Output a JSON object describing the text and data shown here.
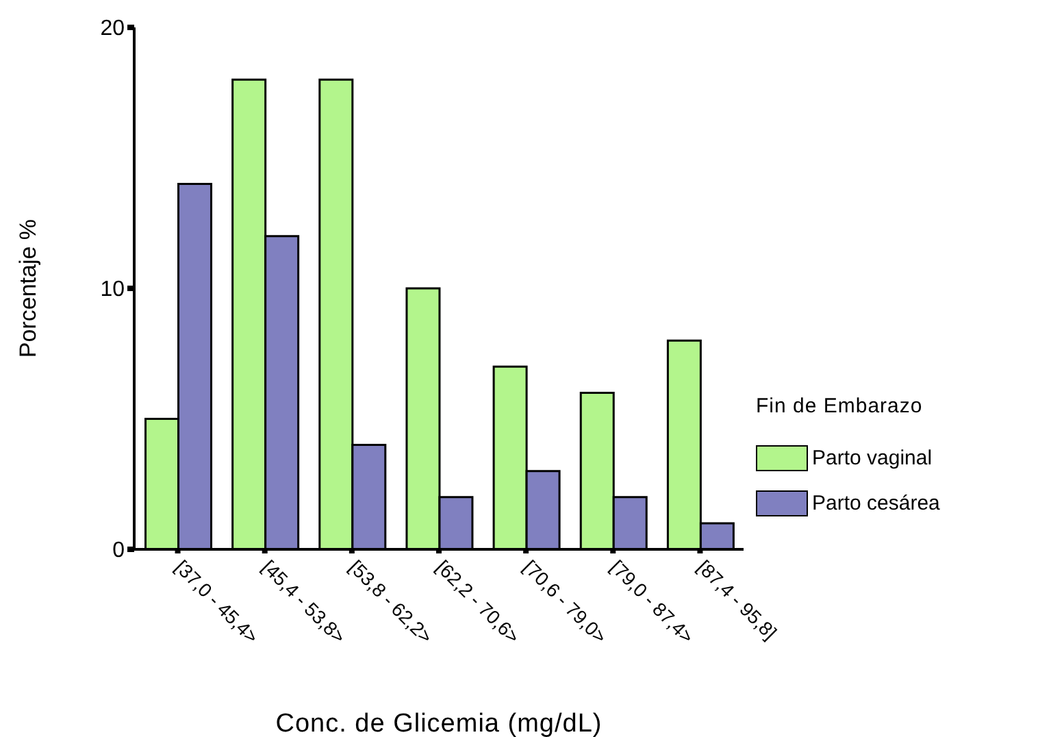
{
  "chart_data": {
    "type": "bar",
    "xlabel": "Conc. de Glicemia (mg/dL)",
    "ylabel": "Porcentaje %",
    "legend_title": "Fin de Embarazo",
    "categories": [
      "[37,0 - 45,4>",
      "[45,4 - 53,8>",
      "[53,8 - 62,2>",
      "[62,2 - 70,6>",
      "[70,6 - 79,0>",
      "[79,0 - 87,4>",
      "[87,4 - 95,8]"
    ],
    "series": [
      {
        "name": "Parto vaginal",
        "color": "#b3f58c",
        "values": [
          5,
          18,
          18,
          10,
          7,
          6,
          8
        ]
      },
      {
        "name": "Parto cesárea",
        "color": "#8080c0",
        "values": [
          14,
          12,
          4,
          2,
          3,
          2,
          1
        ]
      }
    ],
    "ylim": [
      0,
      20
    ],
    "yticks": [
      0,
      10,
      20
    ],
    "grid": false,
    "legend": "right"
  }
}
